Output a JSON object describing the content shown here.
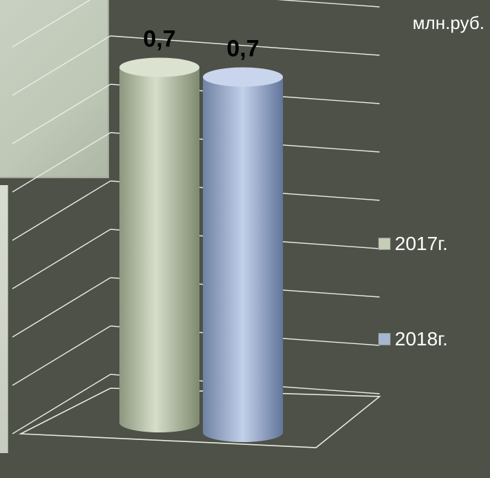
{
  "chart_data": {
    "type": "bar",
    "categories": [
      ""
    ],
    "series": [
      {
        "name": "2017г.",
        "values": [
          0.7
        ],
        "color": "#c4cdb5",
        "label": "0,7"
      },
      {
        "name": "2018г.",
        "values": [
          0.7
        ],
        "color": "#a5b6d3",
        "label": "0,7"
      }
    ],
    "ylabel": "млн.руб.",
    "legend": "right",
    "grid": true,
    "style": "3d-cylinder"
  }
}
